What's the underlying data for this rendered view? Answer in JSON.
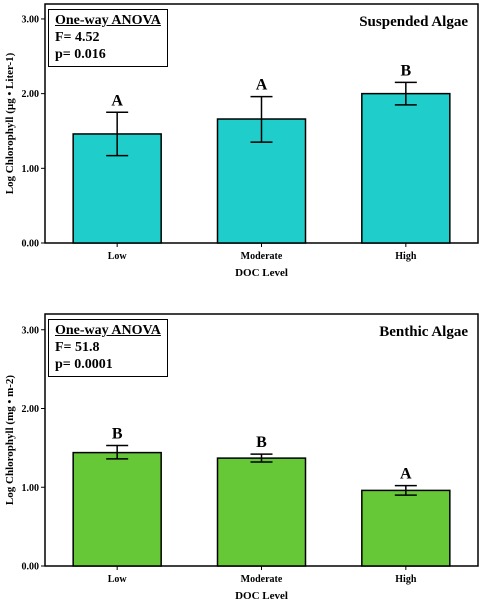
{
  "chart_data": [
    {
      "type": "bar",
      "title": "Suspended Algae",
      "xlabel": "DOC Level",
      "ylabel": "Log Chlorophyll (µg • Liter-1)",
      "categories": [
        "Low",
        "Moderate",
        "High"
      ],
      "values": [
        1.46,
        1.66,
        2.0
      ],
      "error_low": [
        1.17,
        1.35,
        1.85
      ],
      "error_high": [
        1.75,
        1.96,
        2.15
      ],
      "significance_letters": [
        "A",
        "A",
        "B"
      ],
      "ylim": [
        0,
        3.2
      ],
      "yticks": [
        0,
        1,
        2,
        3
      ],
      "ytick_labels": [
        "0.00",
        "1.00",
        "2.00",
        "3.00"
      ],
      "bar_color": "#1FCECB",
      "stats": {
        "heading": "One-way ANOVA",
        "f_text": "F= 4.52",
        "p_text": "p= 0.016"
      }
    },
    {
      "type": "bar",
      "title": "Benthic Algae",
      "xlabel": "DOC Level",
      "ylabel": "Log Chlorophyll (mg • m-2)",
      "categories": [
        "Low",
        "Moderate",
        "High"
      ],
      "values": [
        1.44,
        1.37,
        0.96
      ],
      "error_low": [
        1.36,
        1.32,
        0.9
      ],
      "error_high": [
        1.53,
        1.42,
        1.02
      ],
      "significance_letters": [
        "B",
        "B",
        "A"
      ],
      "ylim": [
        0,
        3.2
      ],
      "yticks": [
        0,
        1,
        2,
        3
      ],
      "ytick_labels": [
        "0.00",
        "1.00",
        "2.00",
        "3.00"
      ],
      "bar_color": "#66C837",
      "stats": {
        "heading": "One-way ANOVA",
        "f_text": "F= 51.8",
        "p_text": "p= 0.0001"
      }
    }
  ]
}
